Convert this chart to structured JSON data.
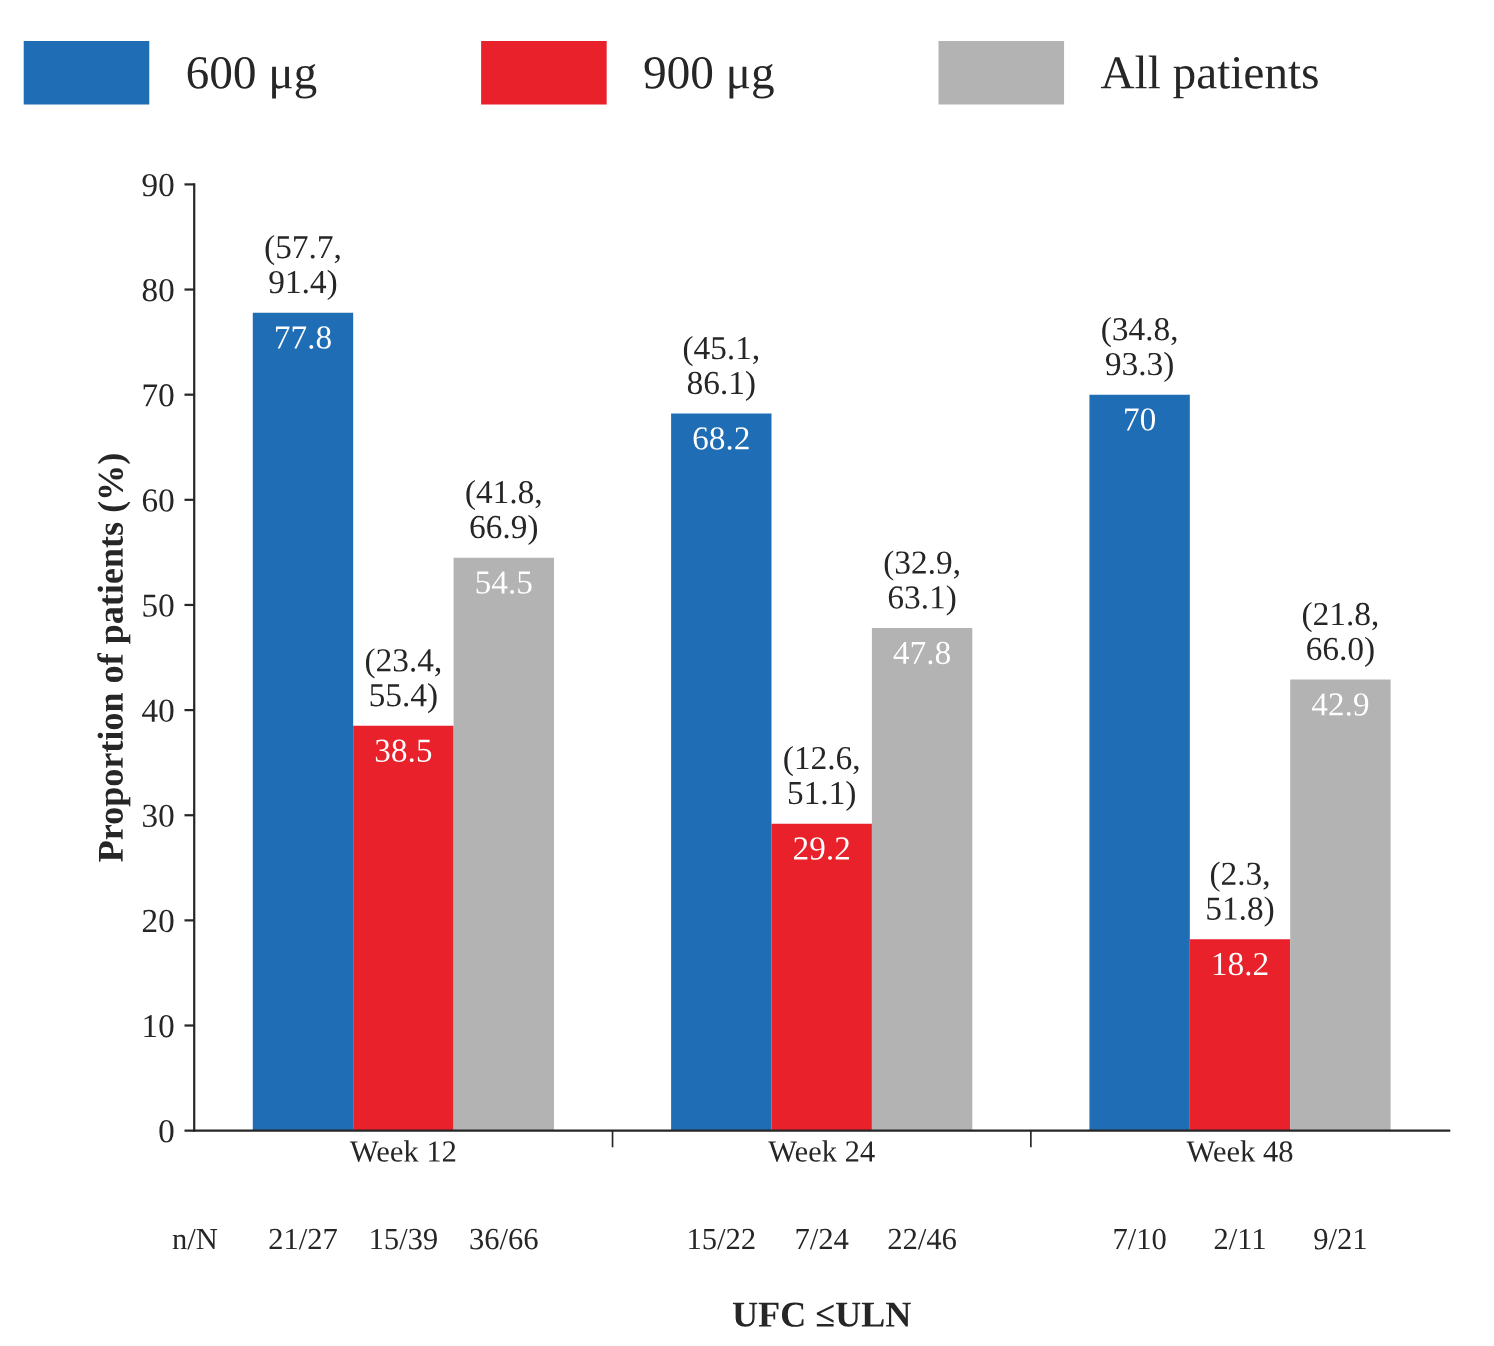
{
  "chart_data": {
    "type": "bar",
    "xlabel": "UFC ≤ULN",
    "ylabel": "Proportion of patients (%)",
    "categories": [
      "Week 12",
      "Week 24",
      "Week 48"
    ],
    "series": [
      {
        "name": "600 μg",
        "color": "#1f6db5",
        "values": [
          77.8,
          68.2,
          70
        ]
      },
      {
        "name": "900 μg",
        "color": "#e8212b",
        "values": [
          38.5,
          29.2,
          18.2
        ]
      },
      {
        "name": "All patients",
        "color": "#b3b3b3",
        "values": [
          54.5,
          47.8,
          42.9
        ]
      }
    ],
    "ylim": [
      0,
      90
    ],
    "yticks": [
      0,
      10,
      20,
      30,
      40,
      50,
      60,
      70,
      80,
      90
    ],
    "data_labels": true,
    "legend": "top",
    "grid": false,
    "annotations": [
      "(57.7,\n91.4)",
      "(23.4,\n55.4)",
      "(41.8,\n66.9)",
      "(45.1,\n86.1)",
      "(12.6,\n51.1)",
      "(32.9,\n63.1)",
      "(34.8,\n93.3)",
      "(2.3,\n51.8)",
      "(21.8,\n66.0)",
      "n/N",
      "21/27",
      "15/39",
      "36/66",
      "15/22",
      "7/24",
      "22/46",
      "7/10",
      "2/11",
      "9/21"
    ]
  }
}
